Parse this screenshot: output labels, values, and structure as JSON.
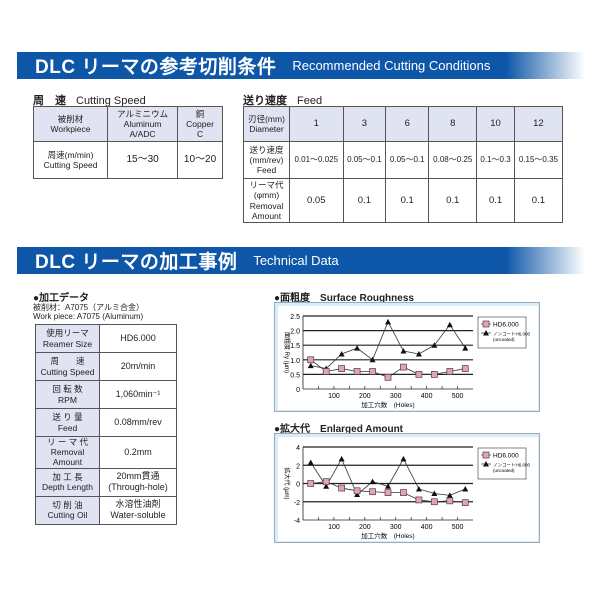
{
  "banner1": {
    "jp": "DLC リーマの参考切削条件",
    "en": "Recommended Cutting Conditions"
  },
  "banner2": {
    "jp": "DLC リーマの加工事例",
    "en": "Technical Data"
  },
  "speed": {
    "title_jp": "周　速",
    "title_en": "Cutting Speed",
    "headers": [
      [
        "被削材",
        "Workpiece"
      ],
      [
        "アルミニウム",
        "Aluminum",
        "A/ADC"
      ],
      [
        "銅",
        "Copper",
        "C"
      ]
    ],
    "row": [
      [
        "周速(m/min)",
        "Cutting Speed"
      ],
      [
        "15～30"
      ],
      [
        "10～20"
      ]
    ]
  },
  "feed": {
    "title_jp": "送り速度",
    "title_en": "Feed",
    "diameter_label": [
      "刃径(mm)",
      "Diameter"
    ],
    "diameters": [
      "1",
      "3",
      "6",
      "8",
      "10",
      "12"
    ],
    "feed_label": [
      "送り速度",
      "(mm/rev)",
      "Feed"
    ],
    "feeds": [
      "0.01～0.025",
      "0.05～0.1",
      "0.05～0.1",
      "0.08～0.25",
      "0.1～0.3",
      "0.15～0.35"
    ],
    "removal_label": [
      "リーマ代",
      "(φmm)",
      "Removal",
      "Amount"
    ],
    "removals": [
      "0.05",
      "0.1",
      "0.1",
      "0.1",
      "0.1",
      "0.1"
    ]
  },
  "proc": {
    "title": "●加工データ",
    "work_jp": "被削材：A7075（アルミ合金）",
    "work_en": "Work piece: A7075 (Aluminum)",
    "rows": [
      {
        "jp": "使用リーマ",
        "en": "Reamer Size",
        "v": [
          "HD6.000"
        ]
      },
      {
        "jp": "周　　速",
        "en": "Cutting Speed",
        "v": [
          "20m/min"
        ]
      },
      {
        "jp": "回 転 数",
        "en": "RPM",
        "v": [
          "1,060min⁻¹"
        ]
      },
      {
        "jp": "送 り 量",
        "en": "Feed",
        "v": [
          "0.08mm/rev"
        ]
      },
      {
        "jp": "リ ー マ 代",
        "en": "Removal Amount",
        "v": [
          "0.2mm"
        ]
      },
      {
        "jp": "加 工 長",
        "en": "Depth Length",
        "v": [
          "20mm貫通",
          "(Through-hole)"
        ]
      },
      {
        "jp": "切 削 油",
        "en": "Cutting Oil",
        "v": [
          "水溶性油剤",
          "Water-soluble"
        ]
      }
    ]
  },
  "chart_data": [
    {
      "type": "line",
      "title": "●面粗度　Surface Roughness",
      "xlabel": "加工穴数　(Holes)",
      "ylabel": "面粗度 Ry (μm)",
      "xlim": [
        0,
        550
      ],
      "ylim": [
        0,
        2.5
      ],
      "xticks": [
        100,
        200,
        300,
        400,
        500
      ],
      "yticks": [
        0,
        0.5,
        1.0,
        1.5,
        2.0,
        2.5
      ],
      "ytick_labels": [
        "0",
        "0.5",
        "1.0",
        "1.5",
        "2.0",
        "2.5"
      ],
      "grid": true,
      "legend": "right",
      "x": [
        25,
        75,
        125,
        175,
        225,
        275,
        325,
        375,
        425,
        475,
        525
      ],
      "series": [
        {
          "name": "HD6.000",
          "marker": "square",
          "color": "#e8a0b8",
          "values": [
            1.0,
            0.6,
            0.7,
            0.6,
            0.6,
            0.4,
            0.75,
            0.5,
            0.5,
            0.6,
            0.7
          ]
        },
        {
          "name": "ノンコートH6.000",
          "name2": "(uncoated)",
          "marker": "triangle",
          "color": "#111111",
          "values": [
            0.8,
            0.7,
            1.2,
            1.4,
            1.0,
            2.3,
            1.3,
            1.2,
            1.5,
            2.2,
            1.4
          ]
        }
      ]
    },
    {
      "type": "line",
      "title": "●拡大代　Enlarged Amount",
      "xlabel": "加工穴数　(Holes)",
      "ylabel": "拡大代 (μm)",
      "xlim": [
        0,
        550
      ],
      "ylim": [
        -4,
        4
      ],
      "xticks": [
        100,
        200,
        300,
        400,
        500
      ],
      "yticks": [
        -4,
        -2,
        0,
        2,
        4
      ],
      "ytick_labels": [
        "-4",
        "-2",
        "0",
        "2",
        "4"
      ],
      "grid": true,
      "legend": "right",
      "x": [
        25,
        75,
        125,
        175,
        225,
        275,
        325,
        375,
        425,
        475,
        525
      ],
      "series": [
        {
          "name": "HD6.000",
          "marker": "square",
          "color": "#e8a0b8",
          "values": [
            0,
            0.2,
            -0.5,
            -0.8,
            -0.9,
            -1.0,
            -1.0,
            -1.8,
            -2.0,
            -1.9,
            -2.1
          ]
        },
        {
          "name": "ノンコートH6.000",
          "name2": "(uncoated)",
          "marker": "triangle",
          "color": "#111111",
          "values": [
            2.3,
            -0.3,
            2.7,
            -1.2,
            0.2,
            -0.3,
            2.7,
            -0.6,
            -1.1,
            -1.3,
            -0.6
          ]
        }
      ]
    }
  ]
}
